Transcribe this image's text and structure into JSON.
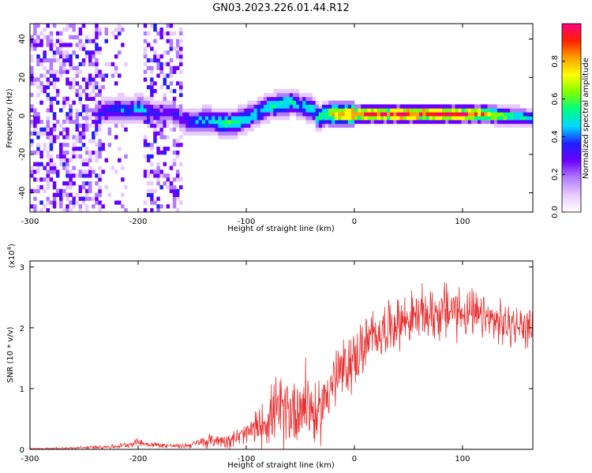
{
  "title": "GN03.2023.226.01.44.R12",
  "chart_data": [
    {
      "type": "heatmap",
      "xlabel": "Height of straight line (km)",
      "ylabel": "Frequency (Hz)",
      "xlim": [
        -300,
        165
      ],
      "ylim": [
        -50,
        48
      ],
      "xticks": [
        -300,
        -200,
        -100,
        0,
        100
      ],
      "yticks": [
        -40,
        -20,
        0,
        20,
        40
      ],
      "colorbar": {
        "label": "Normalized spectral amplitude",
        "ticks": [
          0.0,
          0.2,
          0.4,
          0.6,
          0.8
        ],
        "range": [
          0,
          1
        ],
        "colors": [
          "#ffffff",
          "#e8ccff",
          "#b27cff",
          "#6a00ff",
          "#2020ff",
          "#00d8ff",
          "#00ff80",
          "#7fff00",
          "#ffff00",
          "#ffa000",
          "#ff2000",
          "#ff0080"
        ]
      },
      "trace": {
        "x": [
          -240,
          -230,
          -220,
          -210,
          -200,
          -190,
          -180,
          -170,
          -160,
          -150,
          -140,
          -130,
          -120,
          -110,
          -100,
          -90,
          -80,
          -70,
          -60,
          -50,
          -40,
          -35,
          -30,
          -20,
          -10,
          0,
          20,
          40,
          60,
          80,
          100,
          120,
          140,
          160
        ],
        "center_hz": [
          0,
          2,
          3,
          2,
          3,
          1,
          0,
          1,
          -3,
          -4,
          -3,
          -4,
          -5,
          -4,
          -2,
          1,
          4,
          5,
          6,
          4,
          3,
          -3,
          0,
          0,
          0,
          0,
          0,
          0,
          0,
          0,
          0,
          0,
          -1,
          -2
        ],
        "amplitude": [
          0.3,
          0.35,
          0.4,
          0.4,
          0.45,
          0.35,
          0.3,
          0.3,
          0.35,
          0.4,
          0.45,
          0.5,
          0.6,
          0.55,
          0.5,
          0.45,
          0.5,
          0.55,
          0.5,
          0.45,
          0.5,
          0.55,
          0.6,
          0.75,
          0.85,
          0.95,
          1.0,
          1.0,
          1.0,
          1.0,
          0.95,
          0.85,
          0.6,
          0.5
        ]
      },
      "noise_regions": [
        {
          "x_from": -300,
          "x_to": -235,
          "level": 0.3
        },
        {
          "x_from": -235,
          "x_to": -210,
          "level": 0.08
        },
        {
          "x_from": -195,
          "x_to": -160,
          "level": 0.25
        }
      ]
    },
    {
      "type": "line",
      "xlabel": "Height of straight line (km)",
      "ylabel": "SNR (10 * v/v)",
      "y_multiplier": "(x10",
      "y_multiplier_exp": "4",
      "y_multiplier_close": ")",
      "xlim": [
        -300,
        165
      ],
      "ylim": [
        0,
        3.1
      ],
      "xticks": [
        -300,
        -200,
        -100,
        0,
        100
      ],
      "yticks": [
        0,
        1,
        2,
        3
      ],
      "color": "#e83030",
      "envelope": {
        "x": [
          -300,
          -260,
          -220,
          -210,
          -200,
          -190,
          -160,
          -150,
          -140,
          -130,
          -120,
          -110,
          -100,
          -90,
          -80,
          -75,
          -70,
          -60,
          -50,
          -45,
          -40,
          -35,
          -30,
          -25,
          -20,
          -10,
          0,
          10,
          20,
          40,
          60,
          80,
          90,
          100,
          120,
          140,
          165
        ],
        "y": [
          0.01,
          0.02,
          0.05,
          0.08,
          0.12,
          0.08,
          0.05,
          0.08,
          0.12,
          0.15,
          0.15,
          0.18,
          0.25,
          0.35,
          0.5,
          0.6,
          0.6,
          0.65,
          0.7,
          0.85,
          0.7,
          0.45,
          0.7,
          1.0,
          1.1,
          1.3,
          1.5,
          1.7,
          1.9,
          2.1,
          2.2,
          2.25,
          2.3,
          2.25,
          2.15,
          2.05,
          2.0
        ],
        "noise": [
          0.01,
          0.015,
          0.03,
          0.04,
          0.05,
          0.04,
          0.03,
          0.05,
          0.08,
          0.1,
          0.1,
          0.12,
          0.18,
          0.25,
          0.35,
          0.45,
          0.45,
          0.5,
          0.55,
          0.6,
          0.5,
          0.4,
          0.45,
          0.5,
          0.45,
          0.45,
          0.4,
          0.4,
          0.35,
          0.35,
          0.35,
          0.4,
          0.45,
          0.35,
          0.3,
          0.3,
          0.25
        ]
      }
    }
  ]
}
